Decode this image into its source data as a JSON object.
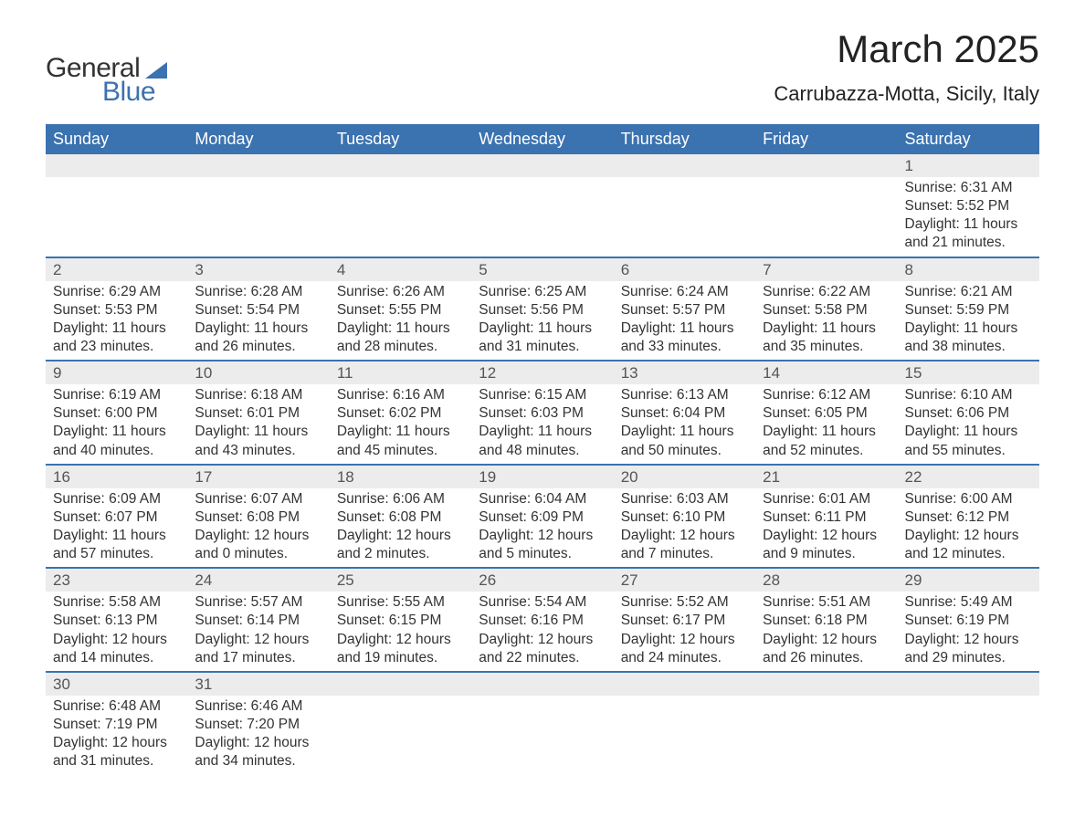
{
  "logo": {
    "text1": "General",
    "text2": "Blue"
  },
  "title": "March 2025",
  "location": "Carrubazza-Motta, Sicily, Italy",
  "colors": {
    "header_bg": "#3b72b0",
    "header_text": "#ffffff",
    "strip_bg": "#ececec",
    "body_text": "#333333",
    "page_bg": "#ffffff",
    "border": "#3b72b0"
  },
  "typography": {
    "title_fontsize": 42,
    "location_fontsize": 22,
    "dayheader_fontsize": 18,
    "daynum_fontsize": 17,
    "body_fontsize": 15.5
  },
  "day_headers": [
    "Sunday",
    "Monday",
    "Tuesday",
    "Wednesday",
    "Thursday",
    "Friday",
    "Saturday"
  ],
  "weeks": [
    [
      null,
      null,
      null,
      null,
      null,
      null,
      {
        "n": "1",
        "sunrise": "6:31 AM",
        "sunset": "5:52 PM",
        "daylight": "11 hours and 21 minutes."
      }
    ],
    [
      {
        "n": "2",
        "sunrise": "6:29 AM",
        "sunset": "5:53 PM",
        "daylight": "11 hours and 23 minutes."
      },
      {
        "n": "3",
        "sunrise": "6:28 AM",
        "sunset": "5:54 PM",
        "daylight": "11 hours and 26 minutes."
      },
      {
        "n": "4",
        "sunrise": "6:26 AM",
        "sunset": "5:55 PM",
        "daylight": "11 hours and 28 minutes."
      },
      {
        "n": "5",
        "sunrise": "6:25 AM",
        "sunset": "5:56 PM",
        "daylight": "11 hours and 31 minutes."
      },
      {
        "n": "6",
        "sunrise": "6:24 AM",
        "sunset": "5:57 PM",
        "daylight": "11 hours and 33 minutes."
      },
      {
        "n": "7",
        "sunrise": "6:22 AM",
        "sunset": "5:58 PM",
        "daylight": "11 hours and 35 minutes."
      },
      {
        "n": "8",
        "sunrise": "6:21 AM",
        "sunset": "5:59 PM",
        "daylight": "11 hours and 38 minutes."
      }
    ],
    [
      {
        "n": "9",
        "sunrise": "6:19 AM",
        "sunset": "6:00 PM",
        "daylight": "11 hours and 40 minutes."
      },
      {
        "n": "10",
        "sunrise": "6:18 AM",
        "sunset": "6:01 PM",
        "daylight": "11 hours and 43 minutes."
      },
      {
        "n": "11",
        "sunrise": "6:16 AM",
        "sunset": "6:02 PM",
        "daylight": "11 hours and 45 minutes."
      },
      {
        "n": "12",
        "sunrise": "6:15 AM",
        "sunset": "6:03 PM",
        "daylight": "11 hours and 48 minutes."
      },
      {
        "n": "13",
        "sunrise": "6:13 AM",
        "sunset": "6:04 PM",
        "daylight": "11 hours and 50 minutes."
      },
      {
        "n": "14",
        "sunrise": "6:12 AM",
        "sunset": "6:05 PM",
        "daylight": "11 hours and 52 minutes."
      },
      {
        "n": "15",
        "sunrise": "6:10 AM",
        "sunset": "6:06 PM",
        "daylight": "11 hours and 55 minutes."
      }
    ],
    [
      {
        "n": "16",
        "sunrise": "6:09 AM",
        "sunset": "6:07 PM",
        "daylight": "11 hours and 57 minutes."
      },
      {
        "n": "17",
        "sunrise": "6:07 AM",
        "sunset": "6:08 PM",
        "daylight": "12 hours and 0 minutes."
      },
      {
        "n": "18",
        "sunrise": "6:06 AM",
        "sunset": "6:08 PM",
        "daylight": "12 hours and 2 minutes."
      },
      {
        "n": "19",
        "sunrise": "6:04 AM",
        "sunset": "6:09 PM",
        "daylight": "12 hours and 5 minutes."
      },
      {
        "n": "20",
        "sunrise": "6:03 AM",
        "sunset": "6:10 PM",
        "daylight": "12 hours and 7 minutes."
      },
      {
        "n": "21",
        "sunrise": "6:01 AM",
        "sunset": "6:11 PM",
        "daylight": "12 hours and 9 minutes."
      },
      {
        "n": "22",
        "sunrise": "6:00 AM",
        "sunset": "6:12 PM",
        "daylight": "12 hours and 12 minutes."
      }
    ],
    [
      {
        "n": "23",
        "sunrise": "5:58 AM",
        "sunset": "6:13 PM",
        "daylight": "12 hours and 14 minutes."
      },
      {
        "n": "24",
        "sunrise": "5:57 AM",
        "sunset": "6:14 PM",
        "daylight": "12 hours and 17 minutes."
      },
      {
        "n": "25",
        "sunrise": "5:55 AM",
        "sunset": "6:15 PM",
        "daylight": "12 hours and 19 minutes."
      },
      {
        "n": "26",
        "sunrise": "5:54 AM",
        "sunset": "6:16 PM",
        "daylight": "12 hours and 22 minutes."
      },
      {
        "n": "27",
        "sunrise": "5:52 AM",
        "sunset": "6:17 PM",
        "daylight": "12 hours and 24 minutes."
      },
      {
        "n": "28",
        "sunrise": "5:51 AM",
        "sunset": "6:18 PM",
        "daylight": "12 hours and 26 minutes."
      },
      {
        "n": "29",
        "sunrise": "5:49 AM",
        "sunset": "6:19 PM",
        "daylight": "12 hours and 29 minutes."
      }
    ],
    [
      {
        "n": "30",
        "sunrise": "6:48 AM",
        "sunset": "7:19 PM",
        "daylight": "12 hours and 31 minutes."
      },
      {
        "n": "31",
        "sunrise": "6:46 AM",
        "sunset": "7:20 PM",
        "daylight": "12 hours and 34 minutes."
      },
      null,
      null,
      null,
      null,
      null
    ]
  ],
  "labels": {
    "sunrise": "Sunrise: ",
    "sunset": "Sunset: ",
    "daylight": "Daylight: "
  }
}
